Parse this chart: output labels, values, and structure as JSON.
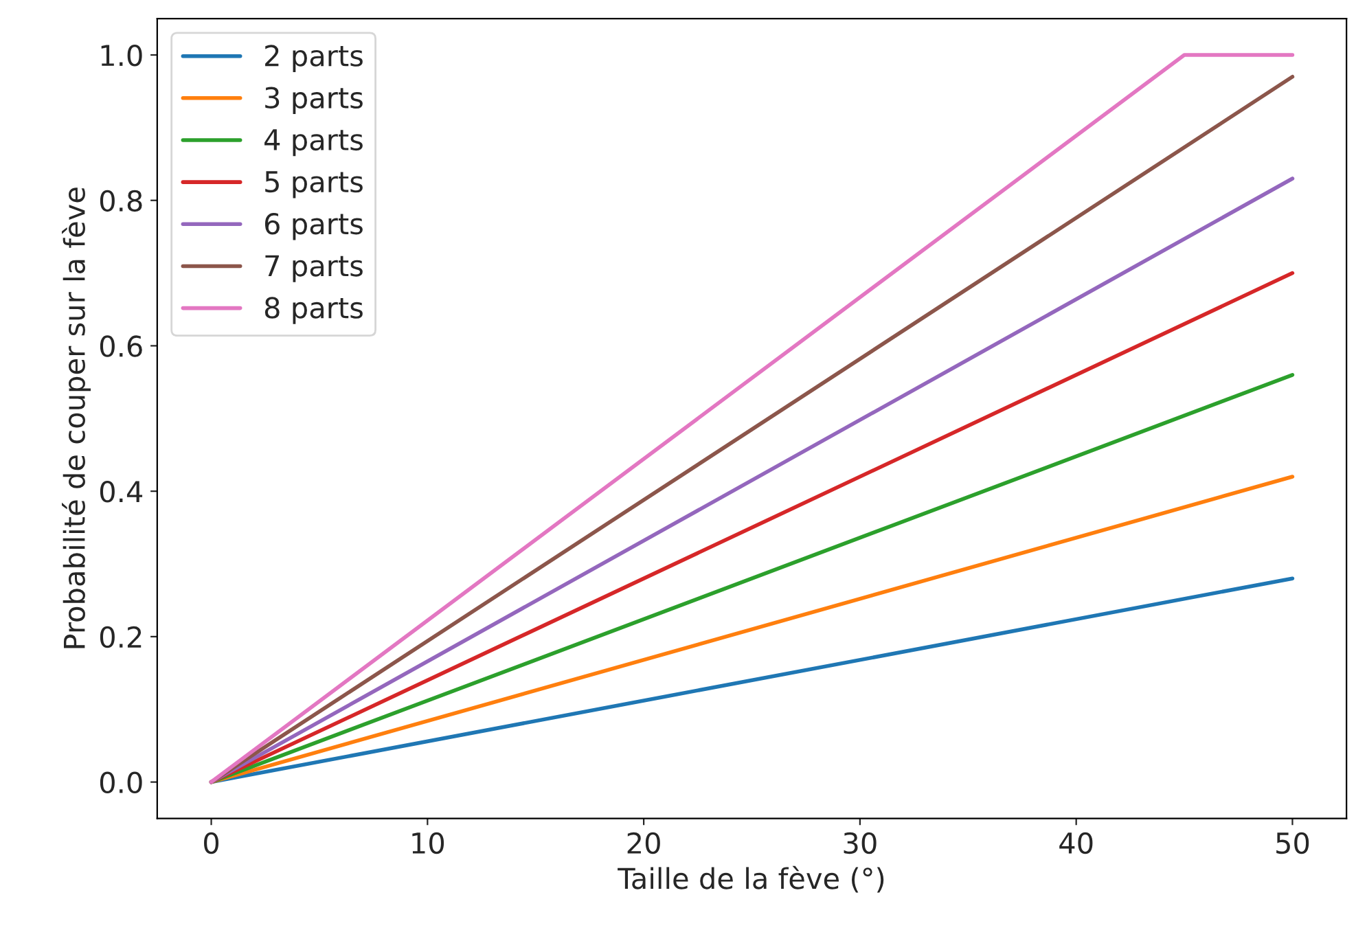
{
  "chart_data": {
    "type": "line",
    "xlabel": "Taille de la fève (°)",
    "ylabel": "Probabilité de couper sur la fève",
    "xlim": [
      -2.5,
      52.5
    ],
    "xticks": [
      0,
      10,
      20,
      30,
      40,
      50
    ],
    "ylim": [
      -0.05,
      1.05
    ],
    "yticks": [
      {
        "value": 0,
        "label": "0.0"
      },
      {
        "value": 0.2,
        "label": "0.2"
      },
      {
        "value": 0.4,
        "label": "0.4"
      },
      {
        "value": 0.6,
        "label": "0.6"
      },
      {
        "value": 0.8,
        "label": "0.8"
      },
      {
        "value": 1,
        "label": "1.0"
      }
    ],
    "grid": false,
    "legend": "top left",
    "line_style": "solid",
    "marker": "none",
    "series": [
      {
        "name": "2 parts",
        "color": "#1f77b4",
        "x": [
          0,
          50
        ],
        "values": [
          0,
          0.28
        ]
      },
      {
        "name": "3 parts",
        "color": "#ff7f0e",
        "x": [
          0,
          50
        ],
        "values": [
          0,
          0.42
        ]
      },
      {
        "name": "4 parts",
        "color": "#2ca02c",
        "x": [
          0,
          50
        ],
        "values": [
          0,
          0.56
        ]
      },
      {
        "name": "5 parts",
        "color": "#d62728",
        "x": [
          0,
          50
        ],
        "values": [
          0,
          0.7
        ]
      },
      {
        "name": "6 parts",
        "color": "#9467bd",
        "x": [
          0,
          50
        ],
        "values": [
          0,
          0.83
        ]
      },
      {
        "name": "7 parts",
        "color": "#8c564b",
        "x": [
          0,
          50
        ],
        "values": [
          0,
          0.97
        ]
      },
      {
        "name": "8 parts",
        "color": "#e377c2",
        "x": [
          0,
          45,
          50
        ],
        "values": [
          0,
          1.0,
          1.0
        ]
      }
    ]
  }
}
